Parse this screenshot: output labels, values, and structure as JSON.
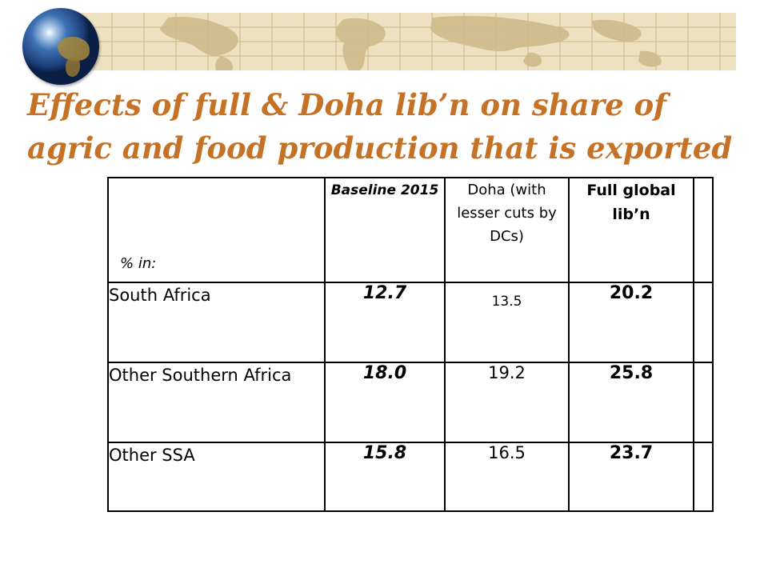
{
  "slide": {
    "title_line1": "Effects of full & Doha lib’n on share of",
    "title_line2": "agric and food production that is exported"
  },
  "table": {
    "header": {
      "label": "% in:",
      "baseline": "Baseline 2015",
      "doha": "Doha (with lesser cuts by DCs)",
      "full": "Full global lib’n"
    },
    "rows": [
      {
        "region": "South Africa",
        "baseline": "12.7",
        "doha": "13.5",
        "full": "20.2"
      },
      {
        "region": "Other Southern Africa",
        "baseline": "18.0",
        "doha": "19.2",
        "full": "25.8"
      },
      {
        "region": "Other SSA",
        "baseline": "15.8",
        "doha": "16.5",
        "full": "23.7"
      }
    ]
  },
  "colors": {
    "title": "#c57227",
    "banner": "#ede1c1",
    "grid": "#c9b683"
  }
}
